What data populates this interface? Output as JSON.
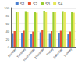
{
  "chart_data": {
    "type": "bar",
    "categories": [
      "Monday",
      "Tuesday",
      "Wednesday",
      "Thursday",
      "Friday",
      "Saturday",
      "Sunday"
    ],
    "series": [
      {
        "name": "S1",
        "color": "#4a7fd0",
        "values": [
          35,
          36,
          34,
          37,
          35,
          36,
          34
        ]
      },
      {
        "name": "S2",
        "color": "#e8522e",
        "values": [
          40,
          41,
          39,
          42,
          40,
          41,
          39
        ]
      },
      {
        "name": "S3",
        "color": "#9acd32",
        "values": [
          90,
          91,
          89,
          92,
          90,
          91,
          89
        ]
      },
      {
        "name": "S4",
        "color": "#e8e85a",
        "values": [
          88,
          89,
          87,
          90,
          88,
          89,
          87
        ]
      }
    ],
    "ylim": [
      0,
      100
    ],
    "yticks": [
      0,
      20,
      40,
      60,
      80,
      100
    ],
    "grid": true,
    "legend": "top"
  }
}
